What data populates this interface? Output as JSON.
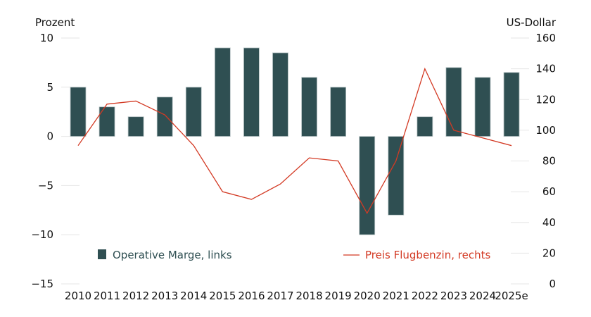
{
  "chart_data": {
    "type": "bar",
    "title": "",
    "categories": [
      "2010",
      "2011",
      "2012",
      "2013",
      "2014",
      "2015",
      "2016",
      "2017",
      "2018",
      "2019",
      "2020",
      "2021",
      "2022",
      "2023",
      "2024",
      "2025e"
    ],
    "left_axis": {
      "label": "Prozent",
      "ylim": [
        -15,
        10
      ],
      "ticks": [
        10,
        5,
        0,
        -5,
        -10,
        -15
      ],
      "tick_labels": [
        "10",
        "5",
        "0",
        "−5",
        "−10",
        "−15"
      ]
    },
    "right_axis": {
      "label": "US-Dollar",
      "ylim": [
        0,
        160
      ],
      "ticks": [
        160,
        140,
        120,
        100,
        80,
        60,
        40,
        20,
        0
      ],
      "tick_labels": [
        "160",
        "140",
        "120",
        "100",
        "80",
        "60",
        "40",
        "20",
        "0"
      ]
    },
    "series": [
      {
        "name": "Operative Marge, links",
        "type": "bar",
        "axis": "left",
        "color": "#2f4f52",
        "values": [
          5,
          3,
          2,
          4,
          5,
          9,
          9,
          8.5,
          6,
          5,
          -10,
          -8,
          2,
          7,
          6,
          6.5
        ]
      },
      {
        "name": "Preis Flugbenzin, rechts",
        "type": "line",
        "axis": "right",
        "color": "#d33a24",
        "values": [
          90,
          117,
          119,
          110,
          90,
          60,
          55,
          65,
          82,
          80,
          46,
          80,
          140,
          100,
          95,
          90
        ]
      }
    ],
    "grid": false,
    "legend": "bottom-inside"
  }
}
